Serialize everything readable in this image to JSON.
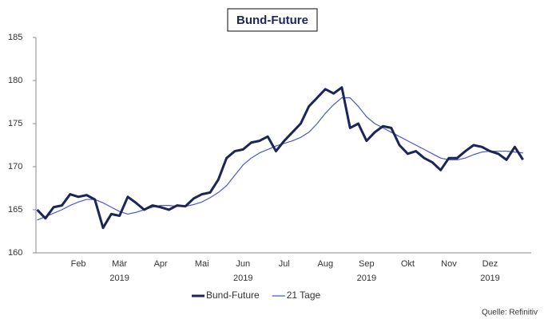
{
  "chart_data": {
    "type": "line",
    "title": "Bund-Future",
    "source": "Quelle: Refinitiv",
    "x": [
      0.5,
      0.7,
      0.9,
      1.1,
      1.3,
      1.5,
      1.7,
      1.9,
      2.1,
      2.3,
      2.5,
      2.7,
      2.9,
      3.1,
      3.3,
      3.5,
      3.7,
      3.9,
      4.1,
      4.3,
      4.5,
      4.7,
      4.9,
      5.1,
      5.3,
      5.5,
      5.7,
      5.9,
      6.1,
      6.3,
      6.5,
      6.7,
      6.9,
      7.1,
      7.3,
      7.5,
      7.7,
      7.9,
      8.1,
      8.3,
      8.5,
      8.7,
      8.9,
      9.1,
      9.3,
      9.5,
      9.7,
      9.9,
      10.1,
      10.3,
      10.5,
      10.7,
      10.9,
      11.1,
      11.3,
      11.5,
      11.7,
      11.9,
      12.1,
      12.3
    ],
    "series": [
      {
        "name": "Bund-Future",
        "color": "#1c2557",
        "width": 3,
        "values": [
          165.0,
          164.0,
          165.3,
          165.5,
          166.8,
          166.5,
          166.7,
          166.2,
          162.9,
          164.5,
          164.3,
          166.5,
          165.8,
          165.0,
          165.5,
          165.3,
          165.0,
          165.5,
          165.4,
          166.3,
          166.8,
          167.0,
          168.5,
          171.0,
          171.8,
          172.0,
          172.8,
          173.0,
          173.5,
          171.8,
          173.0,
          174.0,
          175.0,
          177.0,
          178.0,
          179.0,
          178.5,
          179.2,
          174.5,
          175.0,
          173.0,
          174.0,
          174.7,
          174.5,
          172.5,
          171.5,
          171.8,
          171.0,
          170.5,
          169.6,
          171.0,
          171.0,
          171.8,
          172.5,
          172.3,
          171.8,
          171.5,
          170.8,
          172.3,
          170.8
        ]
      },
      {
        "name": "21 Tage",
        "color": "#4a58c8",
        "width": 1.2,
        "values": [
          163.8,
          164.2,
          164.6,
          165.0,
          165.5,
          165.9,
          166.2,
          166.2,
          165.8,
          165.3,
          164.8,
          164.5,
          164.7,
          165.0,
          165.3,
          165.5,
          165.5,
          165.4,
          165.4,
          165.6,
          165.9,
          166.4,
          167.0,
          167.8,
          169.0,
          170.2,
          171.0,
          171.6,
          172.0,
          172.4,
          172.7,
          173.0,
          173.4,
          174.0,
          175.0,
          176.2,
          177.2,
          178.0,
          178.0,
          177.0,
          175.8,
          175.0,
          174.5,
          174.0,
          173.5,
          173.0,
          172.5,
          172.0,
          171.5,
          171.0,
          170.8,
          170.8,
          171.0,
          171.4,
          171.7,
          171.8,
          171.8,
          171.8,
          171.7,
          171.6
        ]
      }
    ],
    "xlim": [
      0.47,
      12.5
    ],
    "xticks": [
      {
        "value": 1.5,
        "label": "Feb"
      },
      {
        "value": 2.5,
        "label": "Mär"
      },
      {
        "value": 3.5,
        "label": "Apr"
      },
      {
        "value": 4.5,
        "label": "Mai"
      },
      {
        "value": 5.5,
        "label": "Jun"
      },
      {
        "value": 6.5,
        "label": "Jul"
      },
      {
        "value": 7.5,
        "label": "Aug"
      },
      {
        "value": 8.5,
        "label": "Sep"
      },
      {
        "value": 9.5,
        "label": "Okt"
      },
      {
        "value": 10.5,
        "label": "Nov"
      },
      {
        "value": 11.5,
        "label": "Dez"
      }
    ],
    "xyearlabels": [
      {
        "value": 2.5,
        "label": "2019"
      },
      {
        "value": 5.5,
        "label": "2019"
      },
      {
        "value": 8.5,
        "label": "2019"
      },
      {
        "value": 11.5,
        "label": "2019"
      }
    ],
    "ylim": [
      160,
      185
    ],
    "yticks": [
      160,
      165,
      170,
      175,
      180,
      185
    ],
    "grid": false,
    "legend": "bottom"
  }
}
